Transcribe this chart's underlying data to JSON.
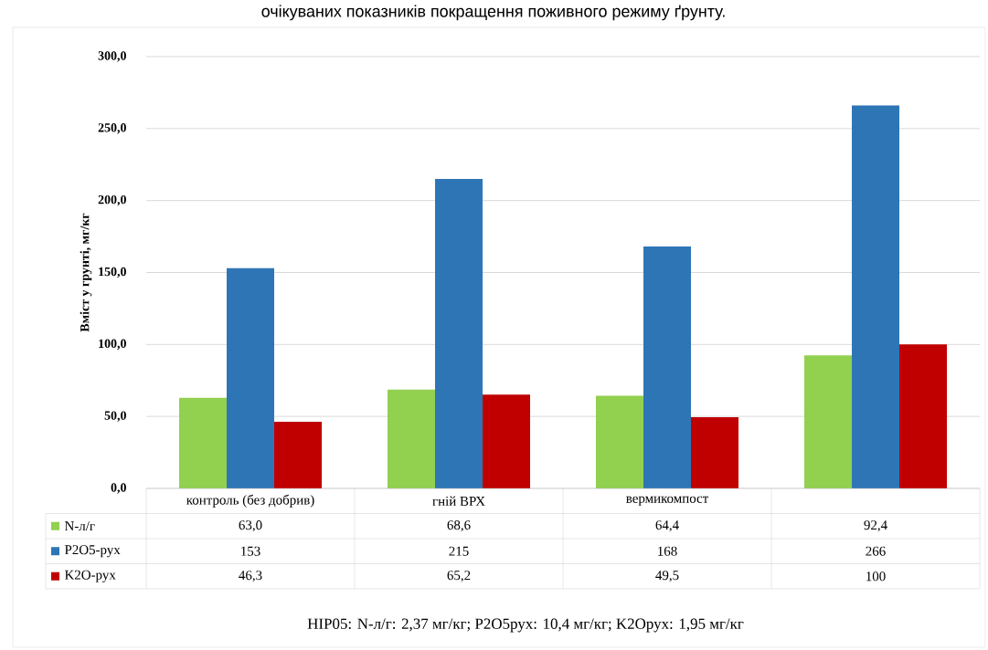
{
  "chart_data": {
    "type": "bar",
    "title": "очікуваних показників покращення поживного режиму ґрунту.",
    "ylabel": "Вміст у грунті, мг/кг",
    "categories": [
      "контроль (без добрив)",
      "гній ВРХ",
      "вермикомпост",
      null
    ],
    "series": [
      {
        "name": "N-л/г",
        "color": "#92d050",
        "values": [
          63.0,
          68.6,
          64.4,
          92.4
        ],
        "value_labels": [
          "63,0",
          "68,6",
          "64,4",
          "92,4"
        ]
      },
      {
        "name": "P2O5-рух",
        "color": "#2e75b6",
        "values": [
          153,
          215,
          168,
          266
        ],
        "value_labels": [
          "153",
          "215",
          "168",
          "266"
        ]
      },
      {
        "name": "K2O-рух",
        "color": "#c00000",
        "values": [
          46.3,
          65.2,
          49.5,
          100
        ],
        "value_labels": [
          "46,3",
          "65,2",
          "49,5",
          "100"
        ]
      }
    ],
    "ylim": [
      0,
      300
    ],
    "yticks": [
      {
        "value": 0,
        "label": "0,0"
      },
      {
        "value": 50,
        "label": "50,0"
      },
      {
        "value": 100,
        "label": "100,0"
      },
      {
        "value": 150,
        "label": "150,0"
      },
      {
        "value": 200,
        "label": "200,0"
      },
      {
        "value": 250,
        "label": "250,0"
      },
      {
        "value": 300,
        "label": "300,0"
      }
    ],
    "grid": "y",
    "legend": "bottom",
    "annotations": [
      "НІР05: N-л/г: 2,37 мг/кг; P2O5рух: 10,4 мг/кг; K2Oрух: 1,95 мг/кг"
    ]
  }
}
